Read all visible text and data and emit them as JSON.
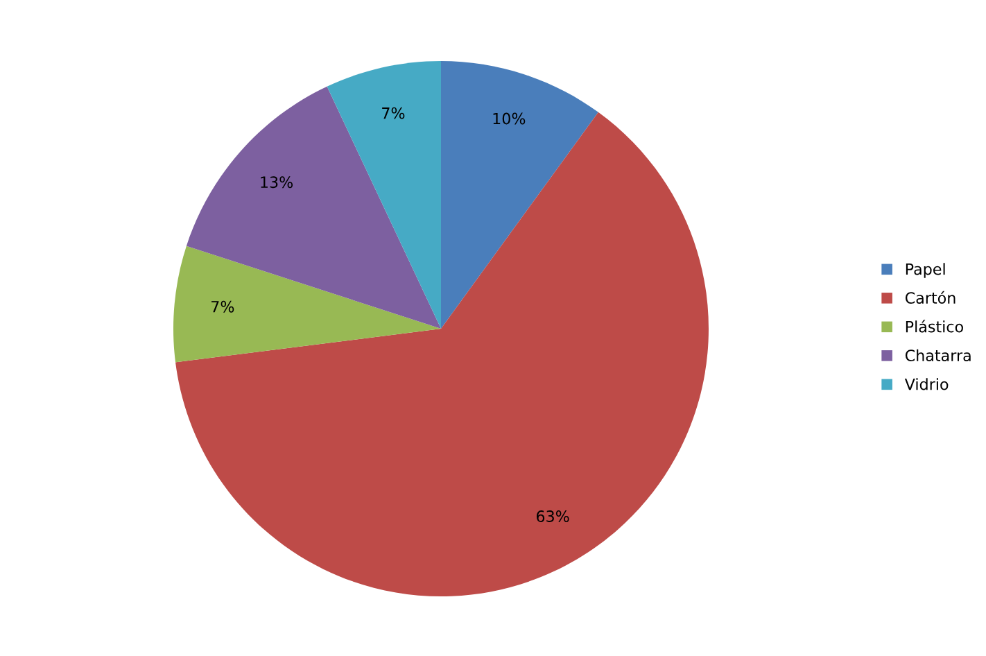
{
  "chart_data": {
    "type": "pie",
    "categories": [
      "Papel",
      "Cartón",
      "Plástico",
      "Chatarra",
      "Vidrio"
    ],
    "values": [
      10,
      63,
      7,
      13,
      7
    ],
    "colors": [
      "#4a7ebb",
      "#be4b48",
      "#98b954",
      "#7d60a0",
      "#46aac5"
    ],
    "value_labels": [
      "10%",
      "63%",
      "7%",
      "13%",
      "7%"
    ],
    "legend": "right"
  }
}
